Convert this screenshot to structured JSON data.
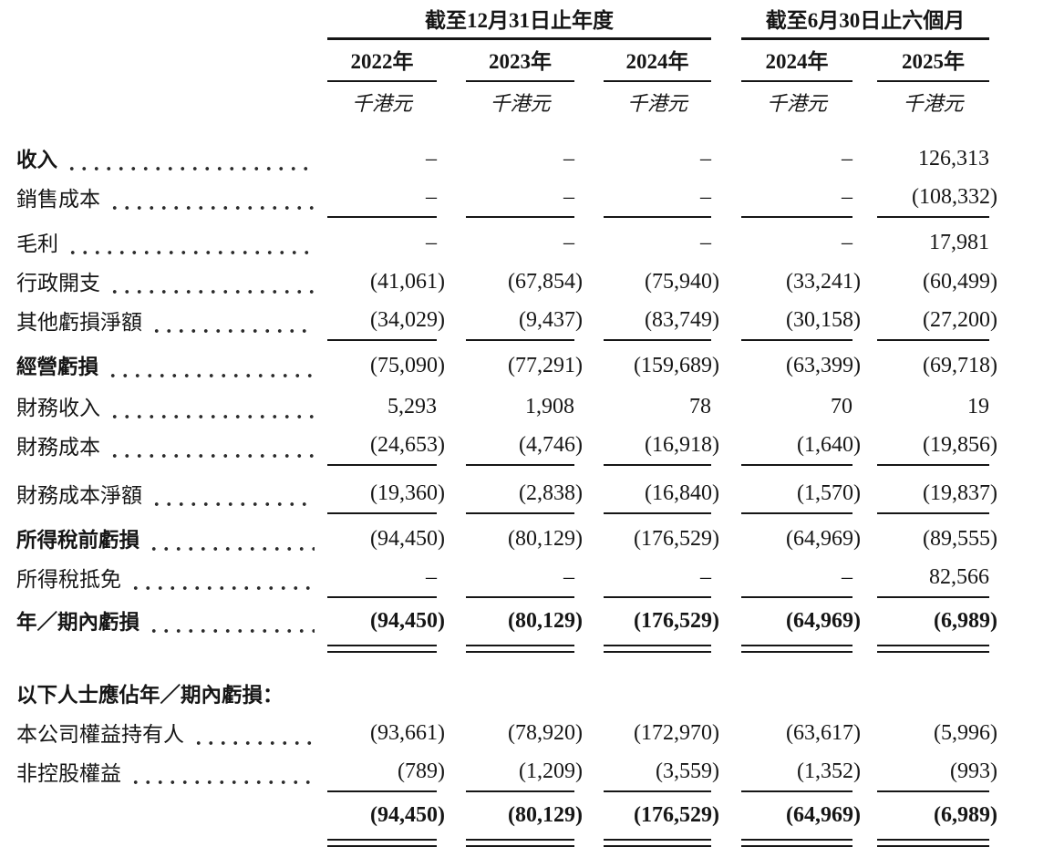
{
  "ink_color": "#161616",
  "table": {
    "col_groups": [
      {
        "label": "截至12月31日止年度",
        "cols": [
          "2022年",
          "2023年",
          "2024年"
        ]
      },
      {
        "label": "截至6月30日止六個月",
        "cols": [
          "2024年",
          "2025年"
        ]
      }
    ],
    "unit": "千港元",
    "rows": [
      {
        "label": "收入",
        "bold_label": true,
        "bold_values": false,
        "dots": true,
        "underline": "none",
        "values": [
          "–",
          "–",
          "–",
          "–",
          "126,313"
        ]
      },
      {
        "label": "銷售成本",
        "bold_label": false,
        "bold_values": false,
        "dots": true,
        "underline": "single",
        "values": [
          "–",
          "–",
          "–",
          "–",
          "(108,332)"
        ]
      },
      {
        "label": "毛利",
        "bold_label": false,
        "bold_values": false,
        "dots": true,
        "underline": "none",
        "values": [
          "–",
          "–",
          "–",
          "–",
          "17,981"
        ]
      },
      {
        "label": "行政開支",
        "bold_label": false,
        "bold_values": false,
        "dots": true,
        "underline": "none",
        "values": [
          "(41,061)",
          "(67,854)",
          "(75,940)",
          "(33,241)",
          "(60,499)"
        ]
      },
      {
        "label": "其他虧損淨額",
        "bold_label": false,
        "bold_values": false,
        "dots": true,
        "underline": "single",
        "values": [
          "(34,029)",
          "(9,437)",
          "(83,749)",
          "(30,158)",
          "(27,200)"
        ]
      },
      {
        "label": "經營虧損",
        "bold_label": true,
        "bold_values": false,
        "dots": true,
        "underline": "none",
        "values": [
          "(75,090)",
          "(77,291)",
          "(159,689)",
          "(63,399)",
          "(69,718)"
        ]
      },
      {
        "label": "財務收入",
        "bold_label": false,
        "bold_values": false,
        "dots": true,
        "underline": "none",
        "values": [
          "5,293",
          "1,908",
          "78",
          "70",
          "19"
        ]
      },
      {
        "label": "財務成本",
        "bold_label": false,
        "bold_values": false,
        "dots": true,
        "underline": "single",
        "values": [
          "(24,653)",
          "(4,746)",
          "(16,918)",
          "(1,640)",
          "(19,856)"
        ]
      },
      {
        "label": "財務成本淨額",
        "bold_label": false,
        "bold_values": false,
        "dots": true,
        "underline": "single",
        "values": [
          "(19,360)",
          "(2,838)",
          "(16,840)",
          "(1,570)",
          "(19,837)"
        ]
      },
      {
        "label": "所得稅前虧損",
        "bold_label": true,
        "bold_values": false,
        "dots": true,
        "underline": "none",
        "values": [
          "(94,450)",
          "(80,129)",
          "(176,529)",
          "(64,969)",
          "(89,555)"
        ]
      },
      {
        "label": "所得稅抵免",
        "bold_label": false,
        "bold_values": false,
        "dots": true,
        "underline": "single",
        "values": [
          "–",
          "–",
          "–",
          "–",
          "82,566"
        ]
      },
      {
        "label": "年／期內虧損",
        "bold_label": true,
        "bold_values": true,
        "dots": true,
        "underline": "double",
        "values": [
          "(94,450)",
          "(80,129)",
          "(176,529)",
          "(64,969)",
          "(6,989)"
        ]
      },
      {
        "label": "以下人士應佔年／期內虧損：",
        "bold_label": true,
        "bold_values": false,
        "dots": false,
        "underline": "none",
        "values": [
          "",
          "",
          "",
          "",
          ""
        ]
      },
      {
        "label": "本公司權益持有人",
        "bold_label": false,
        "bold_values": false,
        "dots": true,
        "underline": "none",
        "values": [
          "(93,661)",
          "(78,920)",
          "(172,970)",
          "(63,617)",
          "(5,996)"
        ]
      },
      {
        "label": "非控股權益",
        "bold_label": false,
        "bold_values": false,
        "dots": true,
        "underline": "single",
        "values": [
          "(789)",
          "(1,209)",
          "(3,559)",
          "(1,352)",
          "(993)"
        ]
      },
      {
        "label": "",
        "bold_label": false,
        "bold_values": true,
        "dots": false,
        "underline": "double",
        "values": [
          "(94,450)",
          "(80,129)",
          "(176,529)",
          "(64,969)",
          "(6,989)"
        ]
      }
    ]
  }
}
